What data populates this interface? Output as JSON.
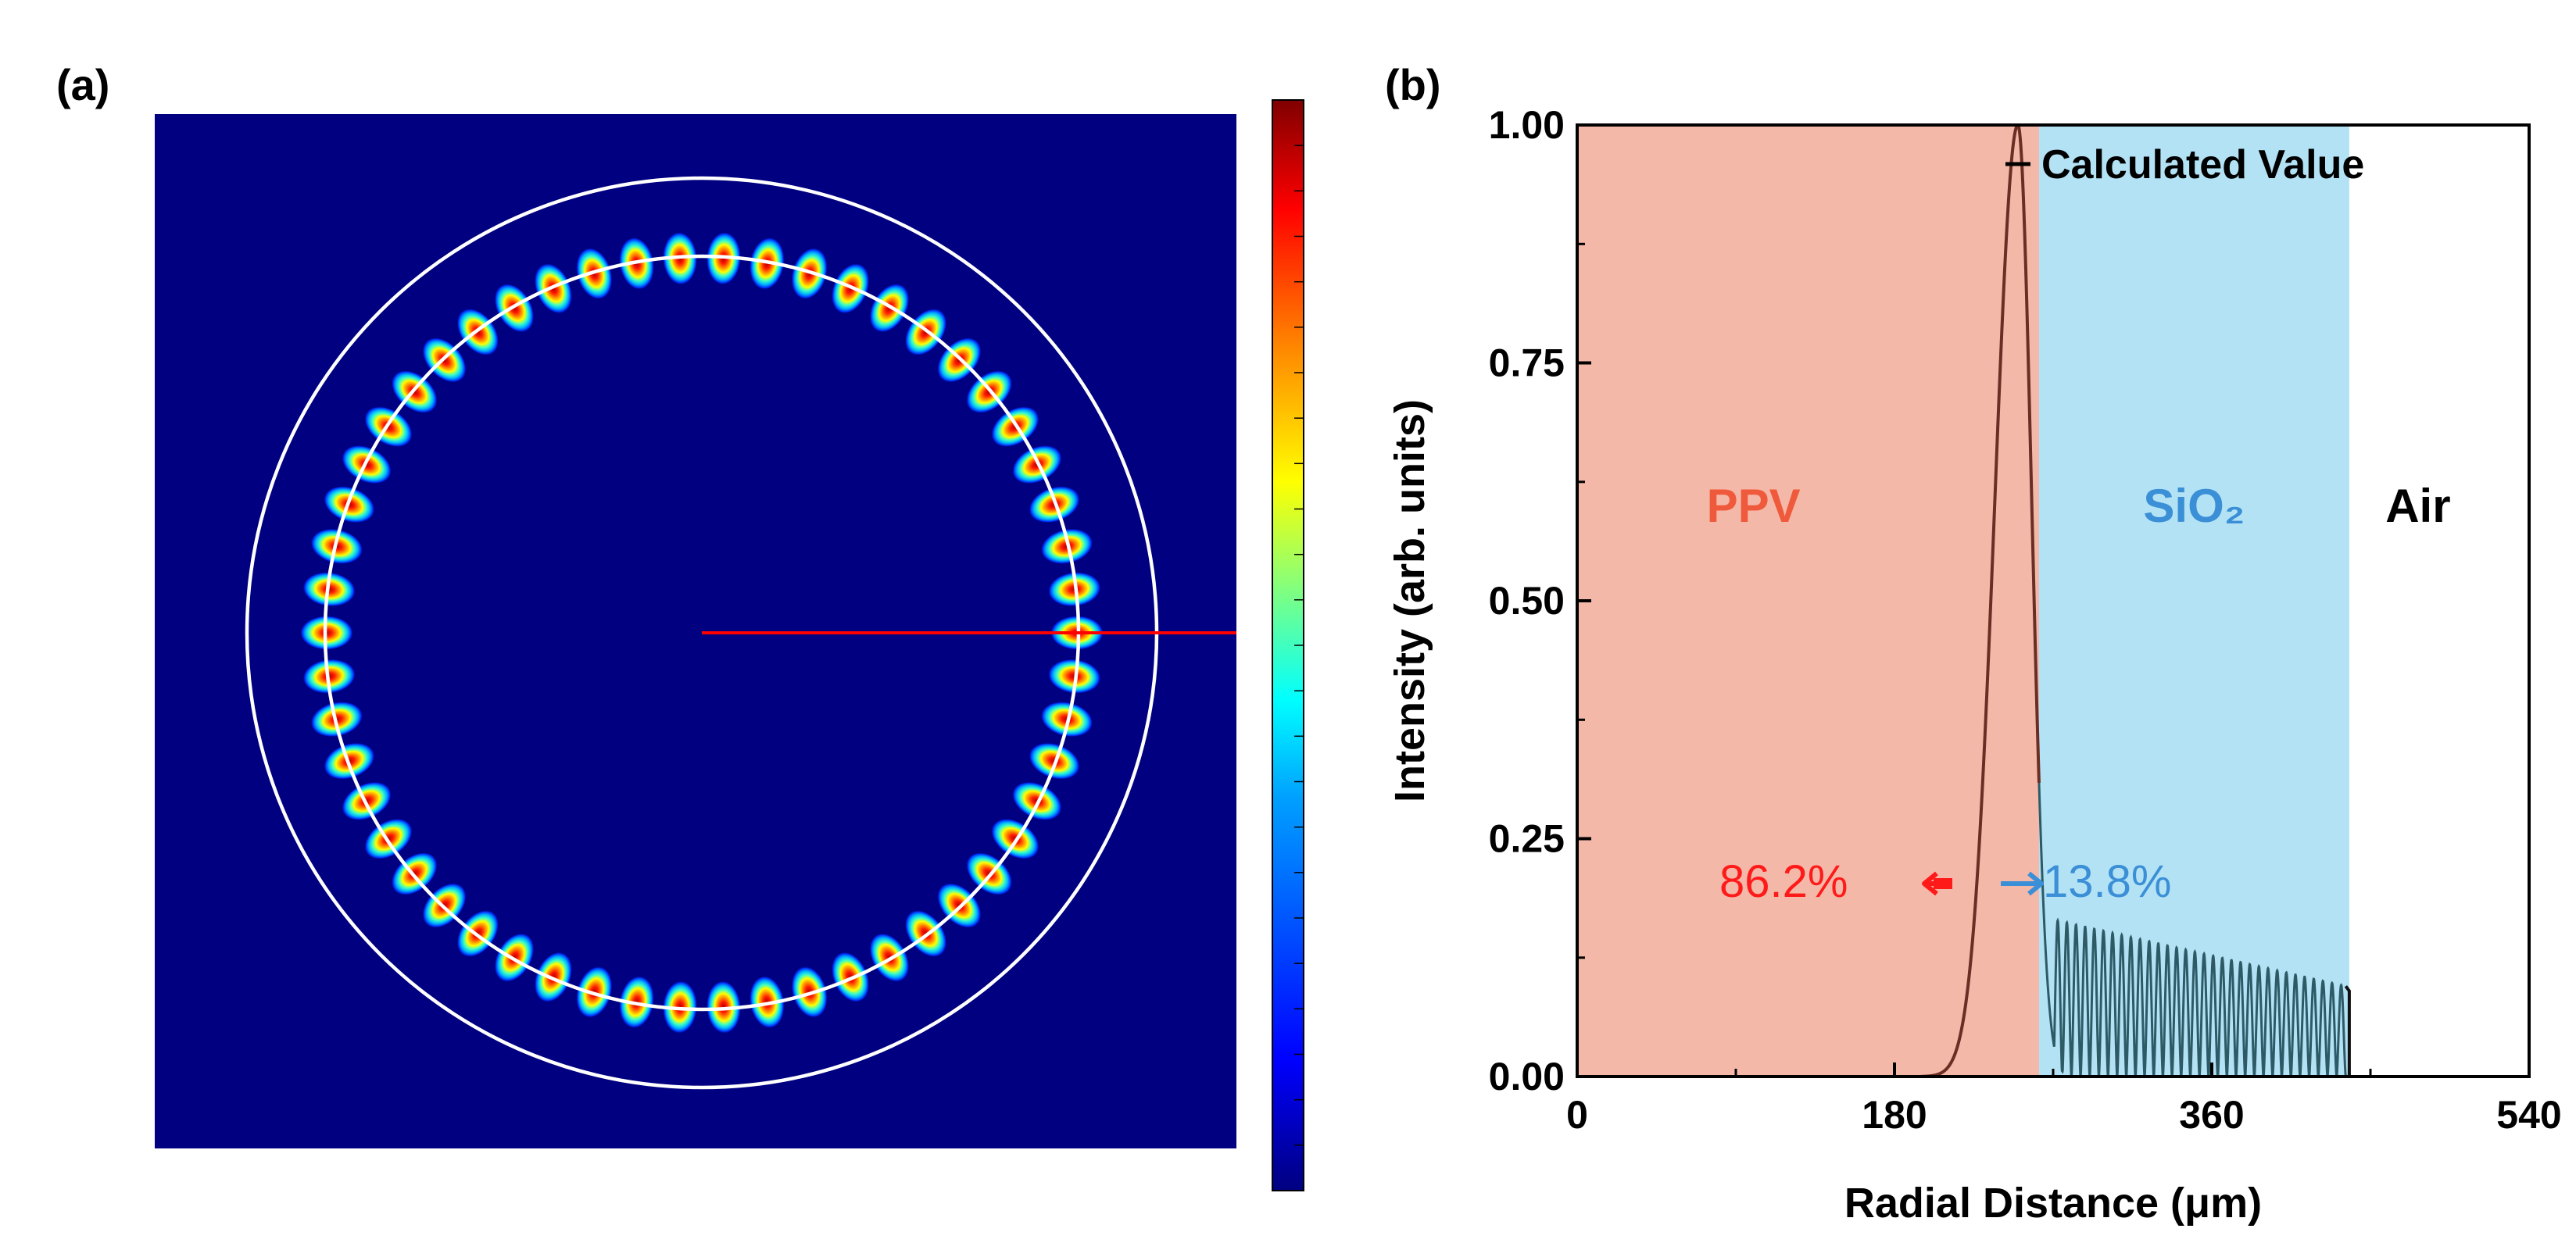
{
  "panel_a": {
    "label": "(a)",
    "mode_count": 54,
    "colormap": "jet",
    "colors": {
      "background": "#000080",
      "ring": "#ffffff",
      "cut_line": "#ff0000",
      "colorbar_stops": [
        "#000080",
        "#0000ff",
        "#00a0ff",
        "#00ffff",
        "#80ff80",
        "#ffff00",
        "#ff8000",
        "#ff0000",
        "#800000"
      ]
    }
  },
  "panel_b": {
    "label": "(b)",
    "legend": "Calculated Value",
    "regions": [
      {
        "name": "PPV",
        "x_start": 0,
        "x_end": 262,
        "color": "#f4b8a8",
        "text_color": "#f05a3c"
      },
      {
        "name": "SiO₂",
        "x_start": 262,
        "x_end": 438,
        "color": "#b3e2f5",
        "text_color": "#3b8fd6"
      },
      {
        "name": "Air",
        "x_start": 438,
        "x_end": 540,
        "color": "#ffffff",
        "text_color": "#000000"
      }
    ],
    "annotations": {
      "ppv_percent": "86.2%",
      "sio2_percent": "13.8%",
      "ppv_color": "#ff1a1a",
      "sio2_color": "#3b8fd6"
    },
    "colors": {
      "ppv_curve": "#6b2e24",
      "sio2_curve": "#2e5a66",
      "air_curve": "#111111"
    }
  },
  "chart_data": {
    "type": "line",
    "title": "",
    "xlabel": "Radial Distance (μm)",
    "ylabel": "Intensity (arb. units)",
    "xlim": [
      0,
      540
    ],
    "ylim": [
      0,
      1.0
    ],
    "xticks": [
      0,
      180,
      360,
      540
    ],
    "xtick_labels": [
      "0",
      "180",
      "360",
      "540"
    ],
    "yticks": [
      0,
      0.25,
      0.5,
      0.75,
      1.0
    ],
    "ytick_labels": [
      "0.00",
      "0.25",
      "0.50",
      "0.75",
      "1.00"
    ],
    "series": [
      {
        "name": "Calculated Value",
        "peak_x": 250,
        "peak_y": 1.0,
        "rise_start_x": 193,
        "decay_end_x": 272,
        "oscillation_start_x": 270,
        "oscillation_end_x": 436,
        "oscillation_envelope_start": 0.165,
        "oscillation_envelope_end": 0.095,
        "oscillation_count": 32,
        "cutoff_x": 438
      }
    ]
  }
}
